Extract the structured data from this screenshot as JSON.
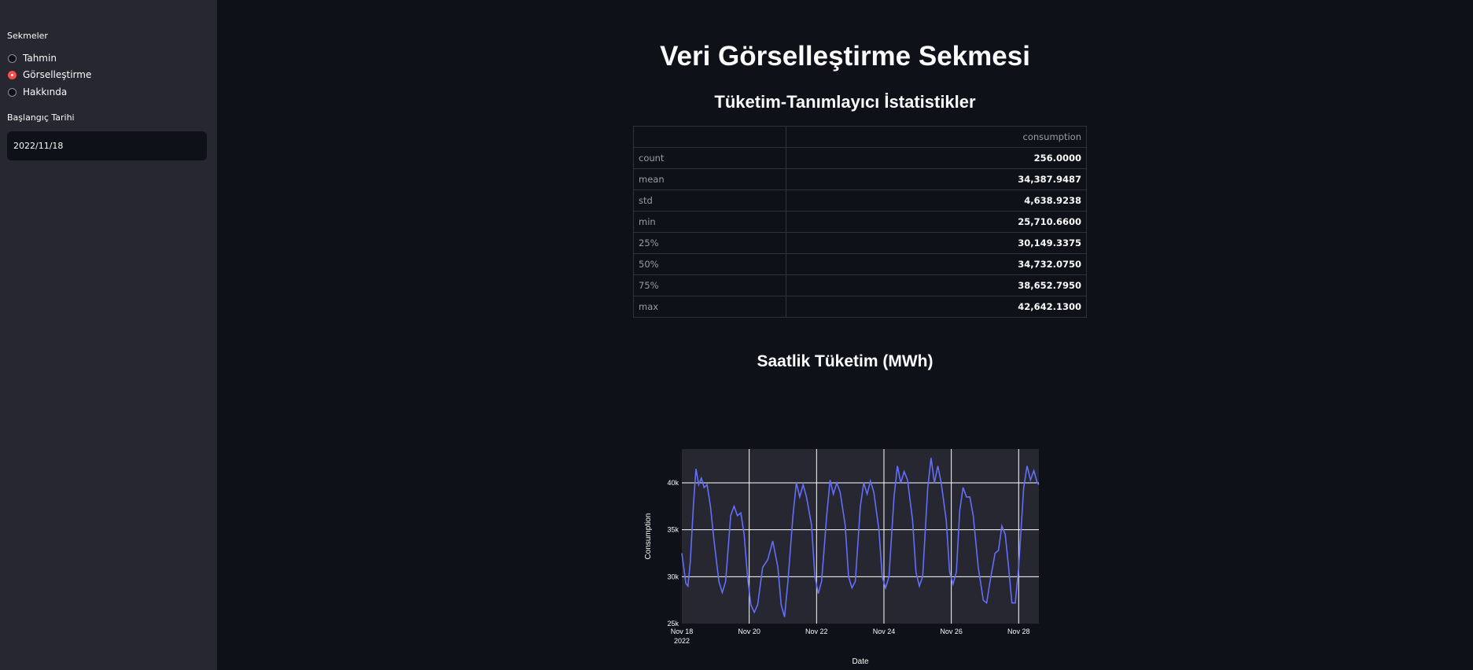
{
  "sidebar": {
    "section_label": "Sekmeler",
    "radio_options": [
      {
        "label": "Tahmin",
        "selected": false
      },
      {
        "label": "Görselleştirme",
        "selected": true
      },
      {
        "label": "Hakkında",
        "selected": false
      }
    ],
    "date_label": "Başlangıç Tarihi",
    "date_value": "2022/11/18"
  },
  "main": {
    "title": "Veri Görselleştirme Sekmesi",
    "stats_title": "Tüketim-Tanımlayıcı İstatistikler",
    "table": {
      "column_header": "consumption",
      "rows": [
        {
          "label": "count",
          "value": "256.0000"
        },
        {
          "label": "mean",
          "value": "34,387.9487"
        },
        {
          "label": "std",
          "value": "4,638.9238"
        },
        {
          "label": "min",
          "value": "25,710.6600"
        },
        {
          "label": "25%",
          "value": "30,149.3375"
        },
        {
          "label": "50%",
          "value": "34,732.0750"
        },
        {
          "label": "75%",
          "value": "38,652.7950"
        },
        {
          "label": "max",
          "value": "42,642.1300"
        }
      ]
    },
    "chart_title": "Saatlik Tüketim (MWh)"
  },
  "colors": {
    "accent": "#ff4b4b",
    "line": "#636efa",
    "plot_bg": "#262730"
  },
  "chart_data": {
    "type": "line",
    "xlabel": "Date",
    "ylabel": "Consumption",
    "x_ticks": [
      "Nov 18",
      "Nov 20",
      "Nov 22",
      "Nov 24",
      "Nov 26",
      "Nov 28"
    ],
    "x_tick_year": "2022",
    "y_ticks": [
      "25k",
      "30k",
      "35k",
      "40k"
    ],
    "x_range_days": [
      0,
      10.6
    ],
    "ylim": [
      25000,
      43600
    ],
    "grid": true,
    "series": [
      {
        "points": [
          [
            0.0,
            32500
          ],
          [
            0.12,
            29300
          ],
          [
            0.18,
            29000
          ],
          [
            0.25,
            31500
          ],
          [
            0.35,
            38000
          ],
          [
            0.42,
            41500
          ],
          [
            0.5,
            39800
          ],
          [
            0.58,
            40500
          ],
          [
            0.66,
            39500
          ],
          [
            0.75,
            39800
          ],
          [
            0.85,
            37500
          ],
          [
            0.95,
            34000
          ],
          [
            1.1,
            29500
          ],
          [
            1.2,
            28300
          ],
          [
            1.3,
            29500
          ],
          [
            1.45,
            36500
          ],
          [
            1.55,
            37500
          ],
          [
            1.65,
            36500
          ],
          [
            1.75,
            36800
          ],
          [
            1.85,
            34500
          ],
          [
            1.95,
            30000
          ],
          [
            2.05,
            27000
          ],
          [
            2.15,
            26200
          ],
          [
            2.25,
            27000
          ],
          [
            2.4,
            31000
          ],
          [
            2.55,
            31800
          ],
          [
            2.7,
            33800
          ],
          [
            2.85,
            31000
          ],
          [
            2.95,
            27000
          ],
          [
            3.05,
            25710
          ],
          [
            3.15,
            29500
          ],
          [
            3.3,
            36500
          ],
          [
            3.4,
            40000
          ],
          [
            3.5,
            38500
          ],
          [
            3.6,
            39800
          ],
          [
            3.7,
            38500
          ],
          [
            3.85,
            35500
          ],
          [
            3.95,
            30000
          ],
          [
            4.05,
            28200
          ],
          [
            4.15,
            29500
          ],
          [
            4.3,
            36500
          ],
          [
            4.4,
            40300
          ],
          [
            4.5,
            38800
          ],
          [
            4.6,
            40000
          ],
          [
            4.7,
            39000
          ],
          [
            4.85,
            35500
          ],
          [
            4.95,
            30000
          ],
          [
            5.05,
            28800
          ],
          [
            5.15,
            29500
          ],
          [
            5.3,
            37500
          ],
          [
            5.4,
            40000
          ],
          [
            5.5,
            38800
          ],
          [
            5.6,
            40200
          ],
          [
            5.7,
            39000
          ],
          [
            5.85,
            35000
          ],
          [
            5.95,
            30000
          ],
          [
            6.05,
            28800
          ],
          [
            6.15,
            30000
          ],
          [
            6.3,
            38500
          ],
          [
            6.4,
            41800
          ],
          [
            6.5,
            40000
          ],
          [
            6.6,
            41200
          ],
          [
            6.7,
            40300
          ],
          [
            6.85,
            36000
          ],
          [
            6.95,
            30500
          ],
          [
            7.05,
            29000
          ],
          [
            7.15,
            30000
          ],
          [
            7.3,
            39500
          ],
          [
            7.4,
            42642
          ],
          [
            7.5,
            40000
          ],
          [
            7.6,
            41800
          ],
          [
            7.7,
            40000
          ],
          [
            7.85,
            36000
          ],
          [
            7.95,
            30500
          ],
          [
            8.05,
            29200
          ],
          [
            8.15,
            30500
          ],
          [
            8.25,
            37000
          ],
          [
            8.35,
            39500
          ],
          [
            8.45,
            38500
          ],
          [
            8.55,
            38500
          ],
          [
            8.65,
            36500
          ],
          [
            8.8,
            31000
          ],
          [
            8.95,
            27500
          ],
          [
            9.05,
            27200
          ],
          [
            9.15,
            29500
          ],
          [
            9.3,
            32500
          ],
          [
            9.4,
            32800
          ],
          [
            9.5,
            35400
          ],
          [
            9.6,
            34500
          ],
          [
            9.7,
            31000
          ],
          [
            9.8,
            27200
          ],
          [
            9.9,
            27200
          ],
          [
            10.0,
            31000
          ],
          [
            10.15,
            39500
          ],
          [
            10.25,
            41800
          ],
          [
            10.35,
            40300
          ],
          [
            10.45,
            41300
          ],
          [
            10.55,
            40000
          ],
          [
            10.6,
            39800
          ]
        ]
      }
    ]
  }
}
